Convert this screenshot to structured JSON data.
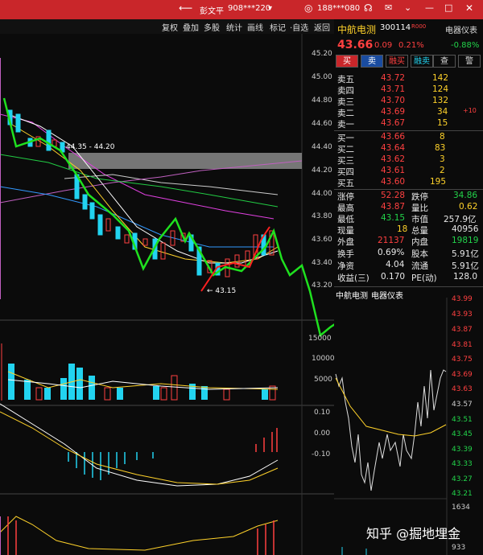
{
  "titlebar": {
    "back_icon": "back-arrow-icon",
    "user_label": "彭文平",
    "account_label": "908***220",
    "chevron": "▾",
    "phone_label": "188***080",
    "icons": [
      "user-icon",
      "headset-icon",
      "mail-icon",
      "chevron-down-icon",
      "minimize-icon",
      "maximize-icon",
      "close-icon"
    ]
  },
  "toolbar": {
    "buttons": [
      "复权",
      "叠加",
      "多股",
      "统计",
      "画线",
      "标记",
      "·自选",
      "返回"
    ]
  },
  "price_axis": [
    "45.20",
    "45.00",
    "44.80",
    "44.60",
    "44.40",
    "44.20",
    "44.00",
    "43.80",
    "43.60",
    "43.40",
    "43.20"
  ],
  "vol_axis": [
    "15000",
    "10000",
    "5000"
  ],
  "macd_axis": [
    "0.10",
    "0.00",
    "-0.10"
  ],
  "annotations": {
    "range_label": "44.35 - 44.20",
    "low_label": "← 43.15"
  },
  "stock": {
    "name": "中航电测",
    "code": "300114",
    "tag": "R000",
    "sector": "电器仪表",
    "sector_change": "-0.88%",
    "price": "43.66",
    "change": "0.09",
    "change_pct": "0.21%"
  },
  "actions": [
    "买",
    "卖",
    "融买",
    "融卖",
    "查",
    "警"
  ],
  "asks": [
    {
      "label": "卖五",
      "price": "43.72",
      "vol": "142",
      "delta": ""
    },
    {
      "label": "卖四",
      "price": "43.71",
      "vol": "124",
      "delta": ""
    },
    {
      "label": "卖三",
      "price": "43.70",
      "vol": "132",
      "delta": ""
    },
    {
      "label": "卖二",
      "price": "43.69",
      "vol": "34",
      "delta": "+10"
    },
    {
      "label": "卖一",
      "price": "43.67",
      "vol": "15",
      "delta": ""
    }
  ],
  "bids": [
    {
      "label": "买一",
      "price": "43.66",
      "vol": "8"
    },
    {
      "label": "买二",
      "price": "43.64",
      "vol": "83"
    },
    {
      "label": "买三",
      "price": "43.62",
      "vol": "3"
    },
    {
      "label": "买四",
      "price": "43.61",
      "vol": "2"
    },
    {
      "label": "买五",
      "price": "43.60",
      "vol": "195"
    }
  ],
  "stats": [
    {
      "l1": "涨停",
      "v1": "52.28",
      "l2": "跌停",
      "v2": "34.86"
    },
    {
      "l1": "最高",
      "v1": "43.87",
      "l2": "量比",
      "v2": "0.62"
    },
    {
      "l1": "最低",
      "v1": "43.15",
      "l2": "市值",
      "v2": "257.9亿"
    },
    {
      "l1": "现量",
      "v1": "18",
      "l2": "总量",
      "v2": "40956"
    },
    {
      "l1": "外盘",
      "v1": "21137",
      "l2": "内盘",
      "v2": "19819"
    },
    {
      "l1": "换手",
      "v1": "0.69%",
      "l2": "股本",
      "v2": "5.91亿"
    },
    {
      "l1": "净资",
      "v1": "4.04",
      "l2": "流通",
      "v2": "5.91亿"
    },
    {
      "l1": "收益(三)",
      "v1": "0.170",
      "l2": "PE(动)",
      "v2": "128.0"
    }
  ],
  "mini": {
    "name": "中航电测",
    "sector": "电器仪表",
    "axis": [
      "43.99",
      "43.93",
      "43.87",
      "43.81",
      "43.75",
      "43.69",
      "43.63",
      "43.57",
      "43.51",
      "43.45",
      "43.39",
      "43.33",
      "43.27",
      "43.21"
    ],
    "vol_label": "1634",
    "bottom_label": "933"
  },
  "watermark": "知乎 @掘地埋金"
}
